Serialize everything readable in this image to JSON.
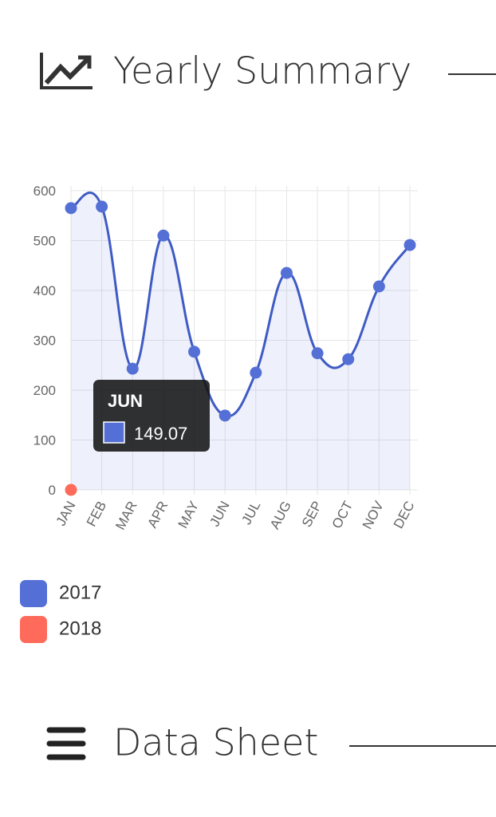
{
  "header": {
    "title": "Yearly Summary"
  },
  "chart_data": {
    "type": "line",
    "categories": [
      "JAN",
      "FEB",
      "MAR",
      "APR",
      "MAY",
      "JUN",
      "JUL",
      "AUG",
      "SEP",
      "OCT",
      "NOV",
      "DEC"
    ],
    "series": [
      {
        "name": "2017",
        "color": "#5470d6",
        "values": [
          565,
          568,
          243,
          510,
          277,
          149.07,
          235,
          435,
          274,
          262,
          408,
          491
        ]
      },
      {
        "name": "2018",
        "color": "#ff6b5b",
        "values": [
          0,
          null,
          null,
          null,
          null,
          null,
          null,
          null,
          null,
          null,
          null,
          null
        ]
      }
    ],
    "ylim": [
      0,
      600
    ],
    "yticks": [
      0,
      100,
      200,
      300,
      400,
      500,
      600
    ],
    "grid": true,
    "tooltip": {
      "title": "chart_data.categories.5",
      "value": "chart_data.series.0.values.5"
    }
  },
  "section": {
    "title": "Data Sheet"
  }
}
